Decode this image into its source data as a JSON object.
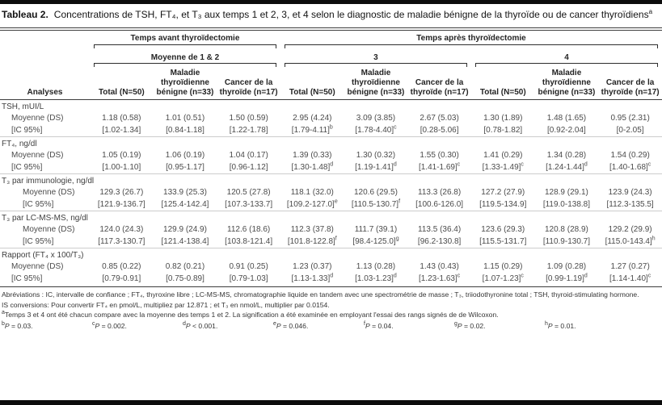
{
  "title": {
    "label": "Tableau 2.",
    "text": "Concentrations de TSH, FT₄, et T₃ aux temps 1 et 2, 3, et 4 selon le diagnostic de maladie bénigne de la thyroïde ou de cancer thyroïdiens",
    "sup": "a"
  },
  "header": {
    "analyses": "Analyses",
    "span_before": "Temps avant thyroïdectomie",
    "span_after": "Temps après thyroïdectomie",
    "sub_before": "Moyenne de 1 & 2",
    "sub_time3": "3",
    "sub_time4": "4",
    "columns": [
      "Total (N=50)",
      "Maladie thyroïdienne bénigne (n=33)",
      "Cancer de la thyroïde (n=17)",
      "Total (N=50)",
      "Maladie thyroïdienne bénigne (n=33)",
      "Cancer de la thyroïde (n=17)",
      "Total (N=50)",
      "Maladie thyroïdienne bénigne (n=33)",
      "Cancer de la thyroïde (n=17)"
    ]
  },
  "table": {
    "groups": [
      {
        "label": "TSH, mUI/L",
        "indent": 1,
        "rows": [
          {
            "label": "Moyenne (DS)",
            "values": [
              "1.18 (0.58)",
              "1.01 (0.51)",
              "1.50 (0.59)",
              "2.95 (4.24)",
              "3.09 (3.85)",
              "2.67 (5.03)",
              "1.30 (1.89)",
              "1.48 (1.65)",
              "0.95 (2.31)"
            ],
            "sups": {}
          },
          {
            "label": "[IC 95%]",
            "values": [
              "[1.02-1.34]",
              "[0.84-1.18]",
              "[1.22-1.78]",
              "[1.79-4.11]",
              "[1.78-4.40]",
              "[0.28-5.06]",
              "[0.78-1.82]",
              "[0.92-2.04]",
              "[0-2.05]"
            ],
            "sups": {
              "3": "b",
              "4": "c"
            }
          }
        ]
      },
      {
        "label": "FT₄, ng/dl",
        "indent": 1,
        "rows": [
          {
            "label": "Moyenne (DS)",
            "values": [
              "1.05 (0.19)",
              "1.06 (0.19)",
              "1.04 (0.17)",
              "1.39 (0.33)",
              "1.30 (0.32)",
              "1.55 (0.30)",
              "1.41 (0.29)",
              "1.34 (0.28)",
              "1.54 (0.29)"
            ],
            "sups": {}
          },
          {
            "label": "[IC 95%]",
            "values": [
              "[1.00-1.10]",
              "[0.95-1.17]",
              "[0.96-1.12]",
              "[1.30-1.48]",
              "[1.19-1.41]",
              "[1.41-1.69]",
              "[1.33-1.49]",
              "[1.24-1.44]",
              "[1.40-1.68]"
            ],
            "sups": {
              "3": "d",
              "4": "d",
              "5": "c",
              "6": "c",
              "7": "d",
              "8": "c"
            }
          }
        ]
      },
      {
        "label": "T₃ par immunologie, ng/dl",
        "indent": 2,
        "rows": [
          {
            "label": "Moyenne (DS)",
            "values": [
              "129.3 (26.7)",
              "133.9 (25.3)",
              "120.5 (27.8)",
              "118.1 (32.0)",
              "120.6 (29.5)",
              "113.3 (26.8)",
              "127.2 (27.9)",
              "128.9 (29.1)",
              "123.9 (24.3)"
            ],
            "sups": {}
          },
          {
            "label": "[IC 95%]",
            "values": [
              "[121.9-136.7]",
              "[125.4-142.4]",
              "[107.3-133.7]",
              "[109.2-127.0]",
              "[110.5-130.7]",
              "[100.6-126.0]",
              "[119.5-134.9]",
              "[119.0-138.8]",
              "[112.3-135.5]"
            ],
            "sups": {
              "3": "e",
              "4": "f"
            }
          }
        ]
      },
      {
        "label": "T₃ par LC-MS-MS, ng/dl",
        "indent": 2,
        "rows": [
          {
            "label": "Moyenne (DS)",
            "values": [
              "124.0 (24.3)",
              "129.9 (24.9)",
              "112.6 (18.6)",
              "112.3 (37.8)",
              "111.7 (39.1)",
              "113.5 (36.4)",
              "123.6 (29.3)",
              "120.8 (28.9)",
              "129.2 (29.9)"
            ],
            "sups": {}
          },
          {
            "label": "[IC 95%]",
            "values": [
              "[117.3-130.7]",
              "[121.4-138.4]",
              "[103.8-121.4]",
              "[101.8-122.8]",
              "[98.4-125.0]",
              "[96.2-130.8]",
              "[115.5-131.7]",
              "[110.9-130.7]",
              "[115.0-143.4]"
            ],
            "sups": {
              "3": "f",
              "4": "g",
              "8": "h"
            }
          }
        ]
      },
      {
        "label": "Rapport (FT₄ x 100/T₃)",
        "indent": 1,
        "rows": [
          {
            "label": "Moyenne (DS)",
            "values": [
              "0.85 (0.22)",
              "0.82 (0.21)",
              "0.91 (0.25)",
              "1.23 (0.37)",
              "1.13 (0.28)",
              "1.43 (0.43)",
              "1.15 (0.29)",
              "1.09 (0.28)",
              "1.27 (0.27)"
            ],
            "sups": {}
          },
          {
            "label": "[IC 95%]",
            "values": [
              "[0.79-0.91]",
              "[0.75-0.89]",
              "[0.79-1.03]",
              "[1.13-1.33]",
              "[1.03-1.23]",
              "[1.23-1.63]",
              "[1.07-1.23]",
              "[0.99-1.19]",
              "[1.14-1.40]"
            ],
            "sups": {
              "3": "d",
              "4": "d",
              "5": "c",
              "6": "c",
              "7": "d",
              "8": "c"
            }
          }
        ]
      }
    ]
  },
  "footnotes": [
    {
      "sup": "",
      "text": "Abréviations : IC, intervalle de confiance ; FT₄, thyroxine libre ; LC-MS-MS, chromatographie liquide en tandem avec une spectrométrie de masse ; T₃, triiodothyronine total ; TSH, thyroid-stimulating hormone."
    },
    {
      "sup": "",
      "text": "IS conversions: Pour convertir FT₄ en pmol/L, multipliez par 12.871 ; et T₃ en nmol/L, multiplier par 0.0154."
    },
    {
      "sup": "a",
      "text": "Temps 3 et 4 ont été chacun compare avec la moyenne des temps 1 et 2. La signification a été examinée en employant l'essai des rangs signés de de Wilcoxon."
    }
  ],
  "pvalues": [
    {
      "sup": "b",
      "p": "P",
      "rest": " = 0.03."
    },
    {
      "sup": "c",
      "p": "P",
      "rest": " = 0.002."
    },
    {
      "sup": "d",
      "p": "P",
      "rest": " < 0.001."
    },
    {
      "sup": "e",
      "p": "P",
      "rest": " = 0.046."
    },
    {
      "sup": "f",
      "p": "P",
      "rest": " = 0.04."
    },
    {
      "sup": "g",
      "p": "P",
      "rest": " = 0.02."
    },
    {
      "sup": "h",
      "p": "P",
      "rest": " = 0.01."
    }
  ],
  "colors": {
    "ink": "#1a1a1a",
    "body_text": "#4b4b4b",
    "rule_light": "#cccccc",
    "rule_dark": "#3c3c3c"
  }
}
